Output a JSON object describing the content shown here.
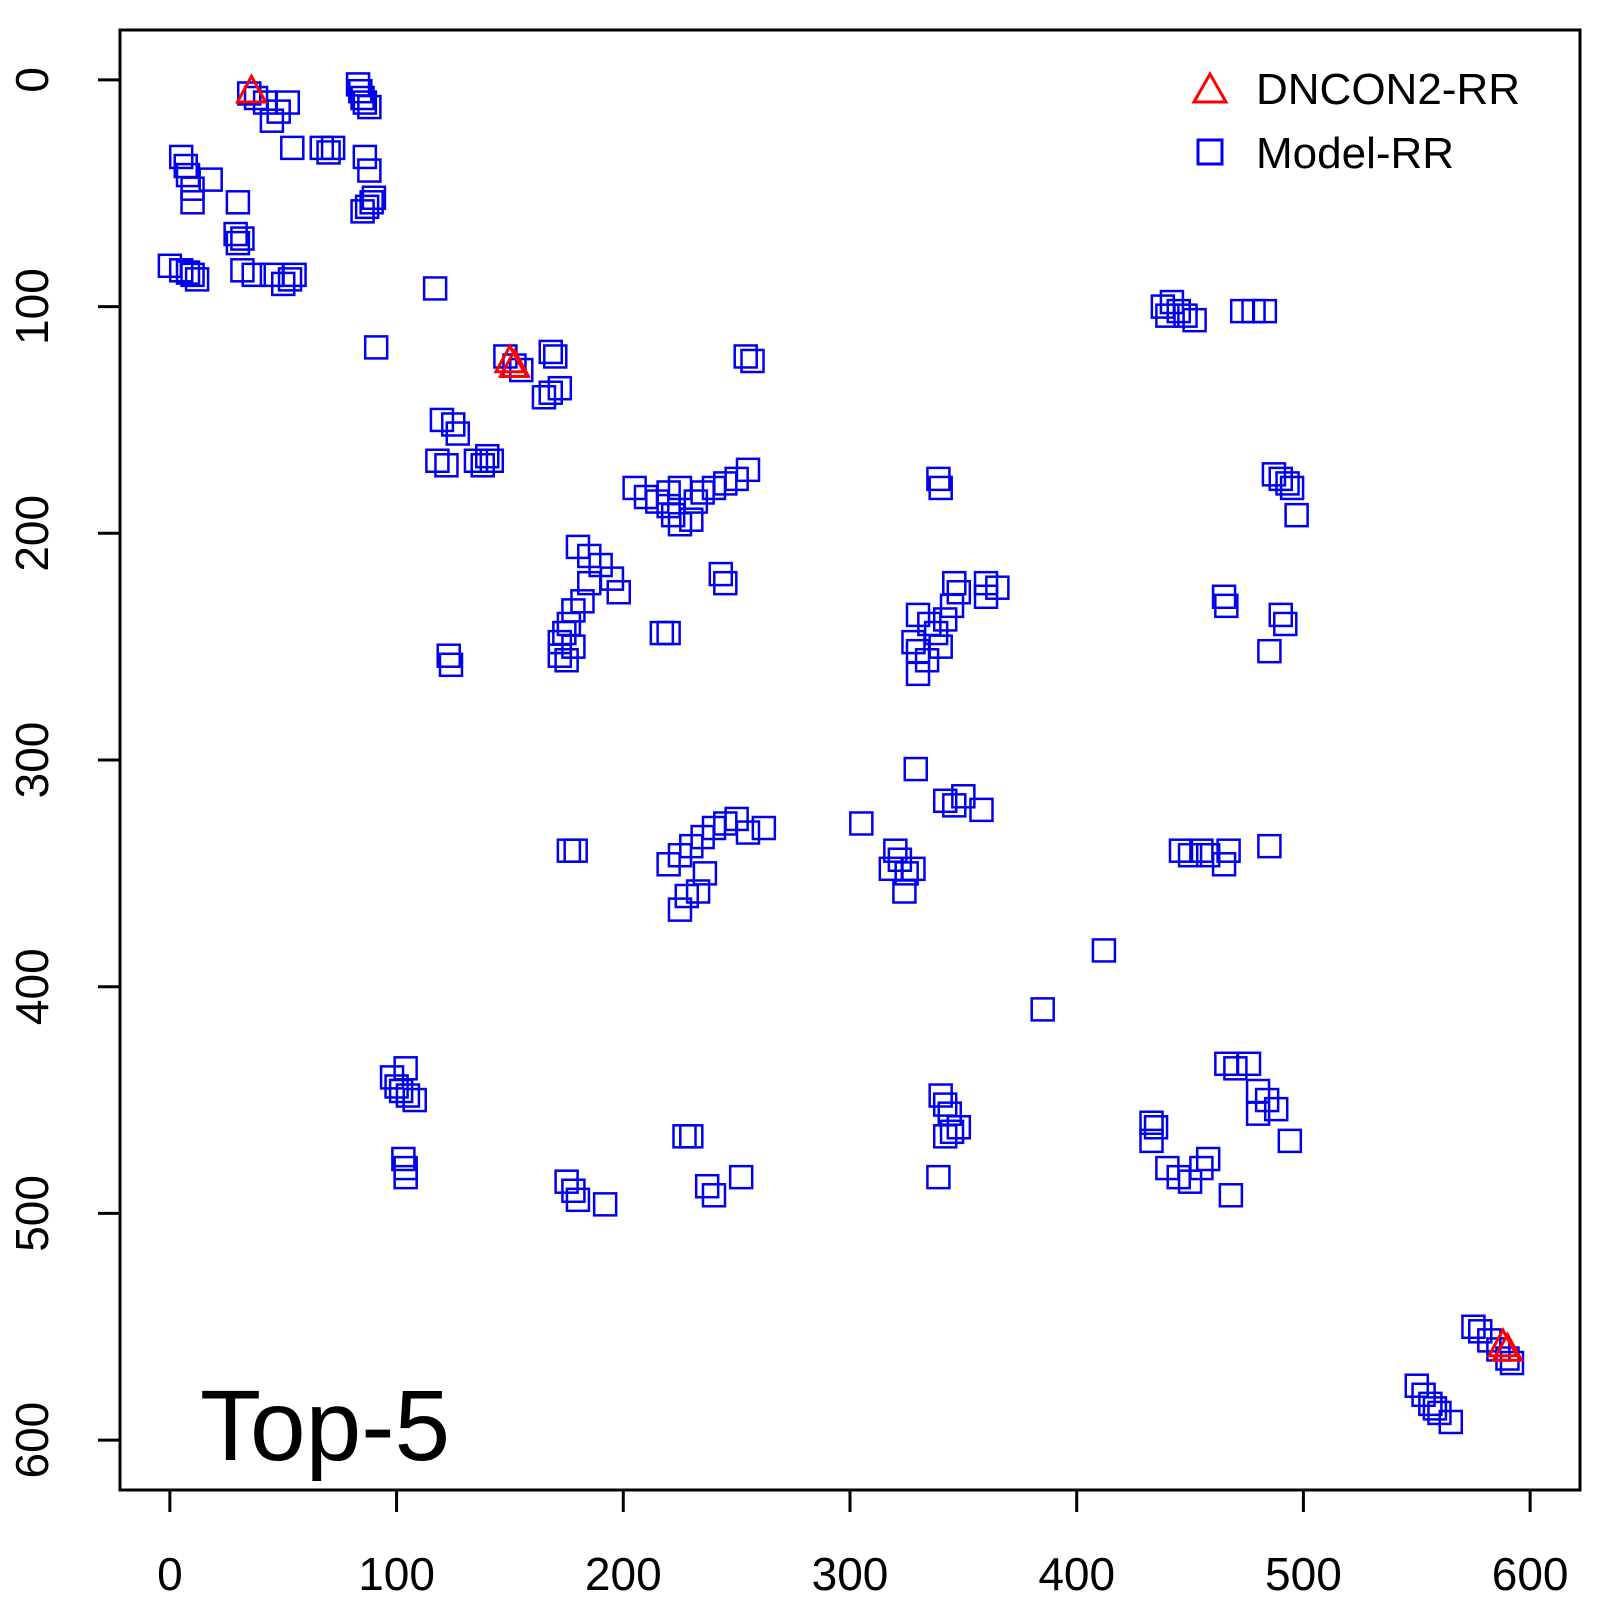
{
  "chart_data": {
    "type": "scatter",
    "title": "",
    "xlabel": "",
    "ylabel": "",
    "xlim": [
      -22,
      622
    ],
    "ylim": [
      622,
      -22
    ],
    "y_reversed": true,
    "x_ticks": [
      0,
      100,
      200,
      300,
      400,
      500,
      600
    ],
    "y_ticks": [
      0,
      100,
      200,
      300,
      400,
      500,
      600
    ],
    "panel_label": "Top-5",
    "legend": {
      "position": "top-right",
      "entries": [
        {
          "label": "DNCON2-RR",
          "marker": "triangle",
          "color": "#ff0000"
        },
        {
          "label": "Model-RR",
          "marker": "square",
          "color": "#0000ee"
        }
      ]
    },
    "series": [
      {
        "name": "Model-RR",
        "marker": "square",
        "color": "#0000ee",
        "points": [
          [
            35,
            6
          ],
          [
            38,
            8
          ],
          [
            42,
            10
          ],
          [
            45,
            18
          ],
          [
            48,
            14
          ],
          [
            52,
            10
          ],
          [
            54,
            30
          ],
          [
            67,
            30
          ],
          [
            70,
            32
          ],
          [
            72,
            30
          ],
          [
            83,
            2
          ],
          [
            84,
            5
          ],
          [
            85,
            8
          ],
          [
            86,
            10
          ],
          [
            88,
            12
          ],
          [
            86,
            34
          ],
          [
            88,
            40
          ],
          [
            85,
            58
          ],
          [
            87,
            56
          ],
          [
            89,
            54
          ],
          [
            90,
            52
          ],
          [
            5,
            34
          ],
          [
            7,
            38
          ],
          [
            8,
            42
          ],
          [
            10,
            48
          ],
          [
            10,
            54
          ],
          [
            18,
            44
          ],
          [
            30,
            54
          ],
          [
            29,
            68
          ],
          [
            30,
            72
          ],
          [
            32,
            70
          ],
          [
            0,
            82
          ],
          [
            5,
            84
          ],
          [
            8,
            85
          ],
          [
            10,
            86
          ],
          [
            12,
            88
          ],
          [
            32,
            84
          ],
          [
            37,
            86
          ],
          [
            45,
            86
          ],
          [
            50,
            90
          ],
          [
            53,
            88
          ],
          [
            55,
            86
          ],
          [
            117,
            92
          ],
          [
            91,
            118
          ],
          [
            148,
            122
          ],
          [
            152,
            126
          ],
          [
            155,
            128
          ],
          [
            168,
            120
          ],
          [
            170,
            122
          ],
          [
            165,
            140
          ],
          [
            168,
            138
          ],
          [
            172,
            136
          ],
          [
            120,
            150
          ],
          [
            125,
            152
          ],
          [
            127,
            156
          ],
          [
            118,
            168
          ],
          [
            122,
            170
          ],
          [
            135,
            168
          ],
          [
            140,
            166
          ],
          [
            138,
            170
          ],
          [
            142,
            168
          ],
          [
            254,
            122
          ],
          [
            257,
            124
          ],
          [
            205,
            180
          ],
          [
            210,
            184
          ],
          [
            215,
            186
          ],
          [
            220,
            188
          ],
          [
            222,
            192
          ],
          [
            225,
            196
          ],
          [
            230,
            194
          ],
          [
            232,
            186
          ],
          [
            235,
            182
          ],
          [
            240,
            180
          ],
          [
            245,
            178
          ],
          [
            250,
            176
          ],
          [
            255,
            172
          ],
          [
            220,
            182
          ],
          [
            225,
            180
          ],
          [
            339,
            176
          ],
          [
            340,
            180
          ],
          [
            487,
            174
          ],
          [
            490,
            176
          ],
          [
            493,
            178
          ],
          [
            495,
            180
          ],
          [
            497,
            192
          ],
          [
            438,
            100
          ],
          [
            442,
            98
          ],
          [
            445,
            102
          ],
          [
            448,
            104
          ],
          [
            452,
            106
          ],
          [
            440,
            104
          ],
          [
            473,
            102
          ],
          [
            478,
            102
          ],
          [
            483,
            102
          ],
          [
            180,
            206
          ],
          [
            185,
            210
          ],
          [
            190,
            214
          ],
          [
            195,
            220
          ],
          [
            198,
            226
          ],
          [
            185,
            222
          ],
          [
            182,
            230
          ],
          [
            178,
            234
          ],
          [
            176,
            240
          ],
          [
            174,
            244
          ],
          [
            172,
            248
          ],
          [
            178,
            250
          ],
          [
            172,
            254
          ],
          [
            175,
            256
          ],
          [
            243,
            218
          ],
          [
            245,
            222
          ],
          [
            217,
            244
          ],
          [
            220,
            244
          ],
          [
            123,
            254
          ],
          [
            124,
            258
          ],
          [
            330,
            236
          ],
          [
            335,
            240
          ],
          [
            338,
            244
          ],
          [
            342,
            238
          ],
          [
            345,
            232
          ],
          [
            348,
            226
          ],
          [
            346,
            222
          ],
          [
            328,
            248
          ],
          [
            330,
            252
          ],
          [
            334,
            256
          ],
          [
            330,
            262
          ],
          [
            340,
            250
          ],
          [
            360,
            222
          ],
          [
            365,
            224
          ],
          [
            360,
            228
          ],
          [
            465,
            228
          ],
          [
            466,
            232
          ],
          [
            490,
            236
          ],
          [
            492,
            240
          ],
          [
            485,
            252
          ],
          [
            329,
            304
          ],
          [
            342,
            318
          ],
          [
            346,
            320
          ],
          [
            350,
            316
          ],
          [
            358,
            322
          ],
          [
            305,
            328
          ],
          [
            320,
            340
          ],
          [
            322,
            344
          ],
          [
            325,
            350
          ],
          [
            318,
            348
          ],
          [
            328,
            348
          ],
          [
            324,
            358
          ],
          [
            220,
            346
          ],
          [
            225,
            342
          ],
          [
            230,
            338
          ],
          [
            235,
            334
          ],
          [
            240,
            330
          ],
          [
            245,
            328
          ],
          [
            250,
            326
          ],
          [
            255,
            332
          ],
          [
            262,
            330
          ],
          [
            236,
            350
          ],
          [
            233,
            358
          ],
          [
            228,
            360
          ],
          [
            225,
            366
          ],
          [
            176,
            340
          ],
          [
            179,
            340
          ],
          [
            446,
            340
          ],
          [
            450,
            342
          ],
          [
            455,
            340
          ],
          [
            458,
            342
          ],
          [
            465,
            346
          ],
          [
            467,
            340
          ],
          [
            485,
            338
          ],
          [
            412,
            384
          ],
          [
            385,
            410
          ],
          [
            98,
            440
          ],
          [
            100,
            444
          ],
          [
            102,
            446
          ],
          [
            105,
            448
          ],
          [
            108,
            450
          ],
          [
            104,
            436
          ],
          [
            103,
            476
          ],
          [
            104,
            480
          ],
          [
            104,
            484
          ],
          [
            466,
            434
          ],
          [
            470,
            436
          ],
          [
            476,
            434
          ],
          [
            480,
            446
          ],
          [
            484,
            450
          ],
          [
            488,
            454
          ],
          [
            480,
            456
          ],
          [
            494,
            468
          ],
          [
            340,
            448
          ],
          [
            342,
            452
          ],
          [
            344,
            456
          ],
          [
            342,
            466
          ],
          [
            345,
            464
          ],
          [
            348,
            462
          ],
          [
            339,
            484
          ],
          [
            433,
            460
          ],
          [
            435,
            462
          ],
          [
            433,
            468
          ],
          [
            440,
            480
          ],
          [
            445,
            484
          ],
          [
            450,
            486
          ],
          [
            455,
            480
          ],
          [
            458,
            476
          ],
          [
            468,
            492
          ],
          [
            175,
            486
          ],
          [
            178,
            490
          ],
          [
            180,
            494
          ],
          [
            192,
            496
          ],
          [
            227,
            466
          ],
          [
            230,
            466
          ],
          [
            237,
            488
          ],
          [
            240,
            492
          ],
          [
            252,
            484
          ],
          [
            575,
            550
          ],
          [
            578,
            552
          ],
          [
            582,
            556
          ],
          [
            586,
            560
          ],
          [
            590,
            564
          ],
          [
            592,
            566
          ],
          [
            550,
            576
          ],
          [
            553,
            580
          ],
          [
            556,
            584
          ],
          [
            558,
            586
          ],
          [
            560,
            588
          ],
          [
            565,
            592
          ]
        ]
      },
      {
        "name": "DNCON2-RR",
        "marker": "triangle",
        "color": "#ff0000",
        "points": [
          [
            36,
            5
          ],
          [
            150,
            124
          ],
          [
            152,
            126
          ],
          [
            588,
            558
          ],
          [
            590,
            560
          ]
        ]
      }
    ]
  }
}
